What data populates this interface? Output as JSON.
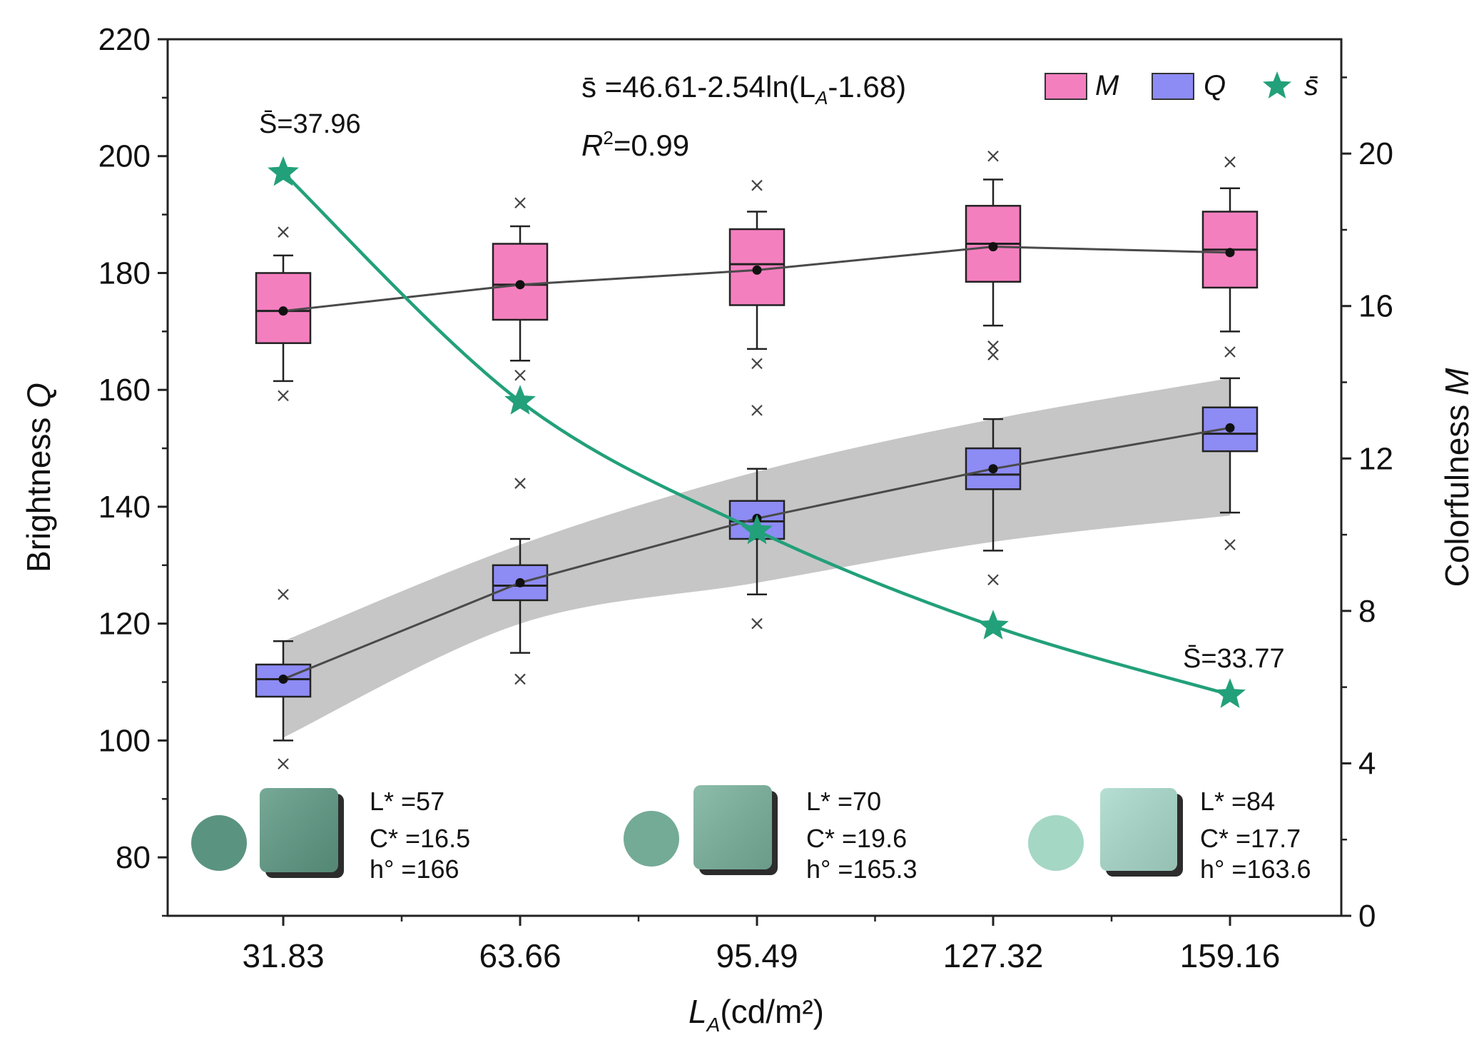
{
  "chart_data": {
    "type": "box",
    "x": {
      "categories": [
        "31.83",
        "63.66",
        "95.49",
        "127.32",
        "159.16"
      ],
      "label_main": "L",
      "label_sub": "A",
      "label_unit": "(cd/m²)"
    },
    "y_left": {
      "label_text": "Brightness ",
      "label_var": "Q",
      "range": [
        70,
        220
      ],
      "ticks": [
        80,
        100,
        120,
        140,
        160,
        180,
        200,
        220
      ]
    },
    "y_right": {
      "label_text": "Colorfulness ",
      "label_var": "M",
      "range": [
        0,
        23
      ],
      "ticks": [
        0,
        4,
        8,
        12,
        16,
        20
      ]
    },
    "colors": {
      "M_fill": "#f47fbf",
      "Q_fill": "#8d8bf4",
      "S_line": "#22a07a",
      "band": "#c6c6c6",
      "mean_line": "#4a4a4a"
    },
    "series": [
      {
        "name": "M",
        "axis": "left",
        "boxes": [
          {
            "q1": 168,
            "median": 173.5,
            "q3": 180,
            "whisker_low": 161.5,
            "whisker_high": 183,
            "mean": 173.5,
            "outliers": [
              187,
              159
            ]
          },
          {
            "q1": 172,
            "median": 178,
            "q3": 185,
            "whisker_low": 165,
            "whisker_high": 188,
            "mean": 178,
            "outliers": [
              192,
              162.5,
              144
            ]
          },
          {
            "q1": 174.5,
            "median": 181.5,
            "q3": 187.5,
            "whisker_low": 167,
            "whisker_high": 190.5,
            "mean": 180.5,
            "outliers": [
              195,
              164.5,
              156.5
            ]
          },
          {
            "q1": 178.5,
            "median": 185,
            "q3": 191.5,
            "whisker_low": 171,
            "whisker_high": 196,
            "mean": 184.5,
            "outliers": [
              200,
              167.5,
              166
            ]
          },
          {
            "q1": 177.5,
            "median": 184,
            "q3": 190.5,
            "whisker_low": 170,
            "whisker_high": 194.5,
            "mean": 183.5,
            "outliers": [
              199,
              166.5
            ]
          }
        ]
      },
      {
        "name": "Q",
        "axis": "left",
        "boxes": [
          {
            "q1": 107.5,
            "median": 110.5,
            "q3": 113,
            "whisker_low": 100,
            "whisker_high": 117,
            "mean": 110.5,
            "outliers": [
              125,
              96
            ]
          },
          {
            "q1": 124,
            "median": 126.5,
            "q3": 130,
            "whisker_low": 115,
            "whisker_high": 134.5,
            "mean": 127,
            "outliers": [
              110.5
            ]
          },
          {
            "q1": 134.5,
            "median": 137.5,
            "q3": 141,
            "whisker_low": 125,
            "whisker_high": 146.5,
            "mean": 138,
            "outliers": [
              120
            ]
          },
          {
            "q1": 143,
            "median": 145.5,
            "q3": 150,
            "whisker_low": 132.5,
            "whisker_high": 155,
            "mean": 146.5,
            "outliers": [
              127.5
            ]
          },
          {
            "q1": 149.5,
            "median": 152.5,
            "q3": 157,
            "whisker_low": 139,
            "whisker_high": 162,
            "mean": 153.5,
            "outliers": [
              133.5
            ]
          }
        ]
      },
      {
        "name": "S̄",
        "axis": "right",
        "type": "line+star",
        "values": [
          19.5,
          13.5,
          10.1,
          7.6,
          5.8
        ]
      }
    ],
    "confidence_band": {
      "x": [
        1,
        2,
        3,
        4,
        5
      ],
      "upper": [
        117,
        133.5,
        146,
        155,
        162
      ],
      "lower": [
        100.5,
        120,
        127,
        134,
        138.5
      ]
    },
    "legend": [
      "M",
      "Q",
      "s̄"
    ],
    "legend_position": "top-right",
    "annotations": {
      "formula": "s̄ =46.61-2.54ln(L",
      "formula_sub": "A",
      "formula_tail": "-1.68)",
      "r2_main": "R",
      "r2_sup": "2",
      "r2_tail": "=0.99",
      "s_first": "S̄=37.96",
      "s_last": "S̄=33.77"
    },
    "samples": [
      {
        "L": "L* =57",
        "C": "C* =16.5",
        "h": "h° =166",
        "circle": "#5a9480",
        "tile": "#5f9a85"
      },
      {
        "L": "L* =70",
        "C": "C* =19.6",
        "h": "h° =165.3",
        "circle": "#73ab96",
        "tile": "#79b19c"
      },
      {
        "L": "L* =84",
        "C": "C* =17.7",
        "h": "h° =163.6",
        "circle": "#a5d7c5",
        "tile": "#a9dacb"
      }
    ]
  }
}
